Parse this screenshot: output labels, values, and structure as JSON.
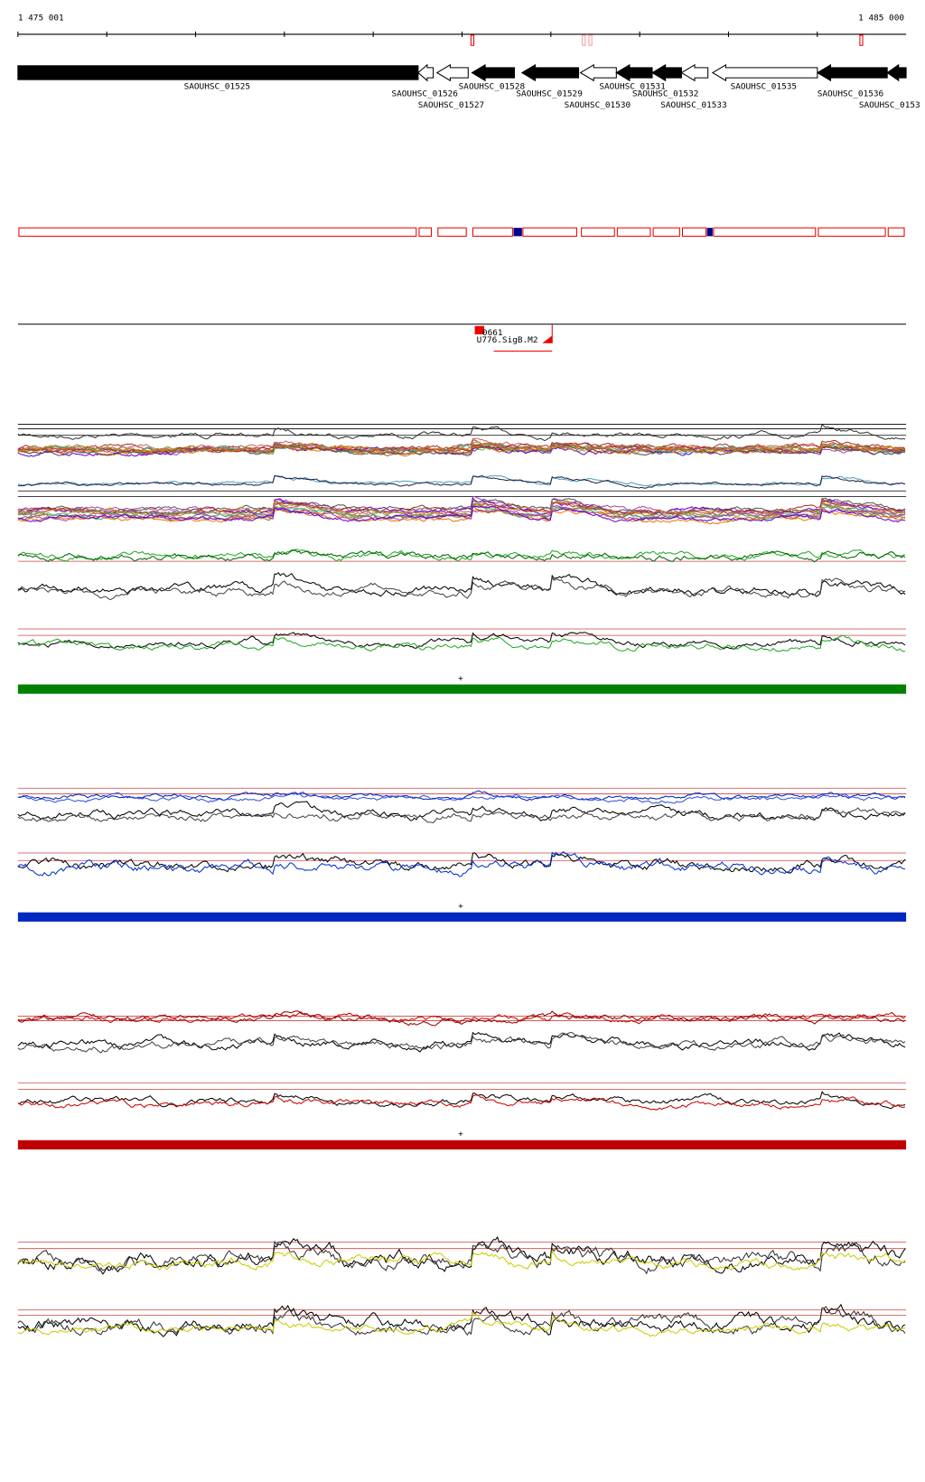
{
  "ruler": {
    "start": "1 475 001",
    "end": "1 485 000"
  },
  "genes": [
    "SAOUHSC_01525",
    "SAOUHSC_01526",
    "SAOUHSC_01527",
    "SAOUHSC_01528",
    "SAOUHSC_01529",
    "SAOUHSC_01530",
    "SAOUHSC_01531",
    "SAOUHSC_01532",
    "SAOUHSC_01533",
    "SAOUHSC_01535",
    "SAOUHSC_01536",
    "SAOUHSC_0153"
  ],
  "features": {
    "id": "0661",
    "motif": "U776.SigB.M2"
  },
  "strand_marks": [
    "+",
    "+",
    "+"
  ]
}
